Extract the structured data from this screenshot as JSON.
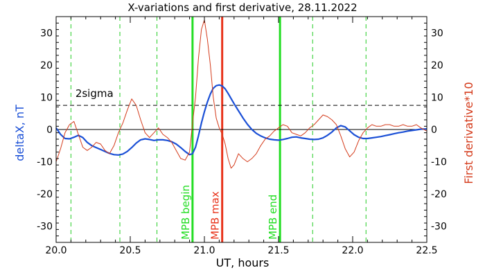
{
  "chart_data": {
    "type": "line",
    "title": "X-variations and first derivative, 28.11.2022",
    "xlabel": "UT, hours",
    "ylabel_left": "deltaX, nT",
    "ylabel_right": "First derivative*10",
    "xlim": [
      20.0,
      22.5
    ],
    "ylim": [
      -35,
      35
    ],
    "xticks": [
      20.0,
      20.5,
      21.0,
      21.5,
      22.0,
      22.5
    ],
    "xtick_labels": [
      "20.0",
      "20.5",
      "21.0",
      "21.5",
      "22.0",
      "22.5"
    ],
    "yticks": [
      -30,
      -20,
      -10,
      0,
      10,
      20,
      30
    ],
    "ytick_labels": [
      "-30",
      "-20",
      "-10",
      "0",
      "10",
      "20",
      "30"
    ],
    "colors": {
      "deltaX": "#1a4fd6",
      "derivative": "#d43a1a",
      "mpb_bounds": "#22dd22",
      "mpb_max": "#e8321a",
      "dashed_green": "#22cc22",
      "sigma": "#000000",
      "zero": "#000000"
    },
    "sigma_level": 7.5,
    "sigma_label": "2sigma",
    "vertical_markers": [
      {
        "x": 20.92,
        "label": "MPB begin",
        "kind": "green_solid"
      },
      {
        "x": 21.12,
        "label": "MPB max",
        "kind": "red_solid"
      },
      {
        "x": 21.51,
        "label": "MPB end",
        "kind": "green_solid"
      }
    ],
    "dashed_markers": [
      20.1,
      20.43,
      20.68,
      21.73,
      22.09
    ],
    "series": [
      {
        "key": "deltaX",
        "x": [
          20.0,
          20.03,
          20.06,
          20.09,
          20.12,
          20.15,
          20.18,
          20.21,
          20.24,
          20.27,
          20.3,
          20.33,
          20.36,
          20.39,
          20.42,
          20.45,
          20.48,
          20.51,
          20.54,
          20.57,
          20.6,
          20.63,
          20.66,
          20.69,
          20.72,
          20.75,
          20.78,
          20.81,
          20.84,
          20.87,
          20.9,
          20.92,
          20.94,
          20.96,
          20.98,
          21.0,
          21.02,
          21.04,
          21.06,
          21.08,
          21.1,
          21.12,
          21.14,
          21.16,
          21.18,
          21.2,
          21.23,
          21.26,
          21.29,
          21.32,
          21.35,
          21.38,
          21.41,
          21.44,
          21.47,
          21.5,
          21.53,
          21.56,
          21.59,
          21.62,
          21.65,
          21.68,
          21.71,
          21.74,
          21.77,
          21.8,
          21.83,
          21.86,
          21.89,
          21.92,
          21.95,
          21.98,
          22.01,
          22.04,
          22.07,
          22.1,
          22.13,
          22.16,
          22.19,
          22.22,
          22.25,
          22.28,
          22.31,
          22.34,
          22.37,
          22.4,
          22.43,
          22.46,
          22.5
        ],
        "y": [
          0.5,
          -1.5,
          -2.8,
          -2.9,
          -2.4,
          -1.8,
          -2.5,
          -4.0,
          -5.0,
          -5.6,
          -6.2,
          -6.8,
          -7.4,
          -7.8,
          -7.9,
          -7.6,
          -6.8,
          -5.6,
          -4.2,
          -3.2,
          -2.9,
          -3.1,
          -3.4,
          -3.2,
          -3.2,
          -3.4,
          -3.8,
          -4.5,
          -5.6,
          -6.8,
          -7.8,
          -7.5,
          -5.5,
          -2.0,
          2.0,
          5.5,
          8.5,
          11.0,
          12.8,
          13.6,
          13.8,
          13.5,
          12.6,
          11.2,
          9.6,
          8.0,
          5.8,
          3.6,
          1.6,
          0.0,
          -1.2,
          -2.0,
          -2.6,
          -3.0,
          -3.2,
          -3.3,
          -3.1,
          -2.8,
          -2.4,
          -2.3,
          -2.6,
          -2.8,
          -3.0,
          -3.1,
          -3.0,
          -2.6,
          -1.8,
          -0.8,
          0.5,
          1.2,
          0.8,
          -0.4,
          -1.6,
          -2.4,
          -2.8,
          -2.8,
          -2.6,
          -2.4,
          -2.2,
          -1.9,
          -1.6,
          -1.3,
          -1.0,
          -0.8,
          -0.5,
          -0.3,
          -0.1,
          0.1,
          0.2
        ]
      },
      {
        "key": "derivative",
        "x": [
          20.0,
          20.03,
          20.06,
          20.09,
          20.12,
          20.15,
          20.18,
          20.21,
          20.24,
          20.27,
          20.3,
          20.33,
          20.36,
          20.39,
          20.42,
          20.45,
          20.48,
          20.51,
          20.54,
          20.57,
          20.6,
          20.63,
          20.66,
          20.69,
          20.72,
          20.75,
          20.78,
          20.81,
          20.84,
          20.87,
          20.9,
          20.92,
          20.94,
          20.96,
          20.98,
          21.0,
          21.02,
          21.04,
          21.06,
          21.08,
          21.1,
          21.12,
          21.14,
          21.16,
          21.18,
          21.2,
          21.23,
          21.26,
          21.29,
          21.32,
          21.35,
          21.38,
          21.41,
          21.44,
          21.47,
          21.5,
          21.53,
          21.56,
          21.59,
          21.62,
          21.65,
          21.68,
          21.71,
          21.74,
          21.77,
          21.8,
          21.83,
          21.86,
          21.89,
          21.92,
          21.95,
          21.98,
          22.01,
          22.04,
          22.07,
          22.1,
          22.13,
          22.16,
          22.19,
          22.22,
          22.25,
          22.28,
          22.31,
          22.34,
          22.37,
          22.4,
          22.43,
          22.46,
          22.5
        ],
        "y": [
          -10.0,
          -6.0,
          -1.0,
          1.5,
          2.5,
          -1.5,
          -5.5,
          -6.5,
          -5.5,
          -4.0,
          -4.5,
          -6.5,
          -7.5,
          -5.0,
          -1.0,
          2.0,
          6.0,
          9.5,
          7.5,
          3.0,
          -1.0,
          -2.5,
          -1.0,
          0.5,
          -1.5,
          -2.5,
          -4.0,
          -6.5,
          -9.0,
          -9.5,
          -7.0,
          2.0,
          10.0,
          22.0,
          31.0,
          34.0,
          28.0,
          20.0,
          10.0,
          3.5,
          0.5,
          -1.5,
          -4.5,
          -9.0,
          -12.0,
          -11.0,
          -7.5,
          -9.0,
          -10.0,
          -9.0,
          -7.5,
          -5.0,
          -3.0,
          -2.0,
          -0.5,
          0.5,
          1.5,
          1.0,
          -1.0,
          -1.5,
          -2.0,
          -1.0,
          0.5,
          1.5,
          3.0,
          4.5,
          4.0,
          3.0,
          1.5,
          -2.0,
          -6.0,
          -8.5,
          -7.0,
          -3.5,
          -1.0,
          0.5,
          1.5,
          1.0,
          1.0,
          1.5,
          1.5,
          1.0,
          1.0,
          1.5,
          1.0,
          1.0,
          1.5,
          0.5,
          -0.5
        ]
      }
    ]
  }
}
